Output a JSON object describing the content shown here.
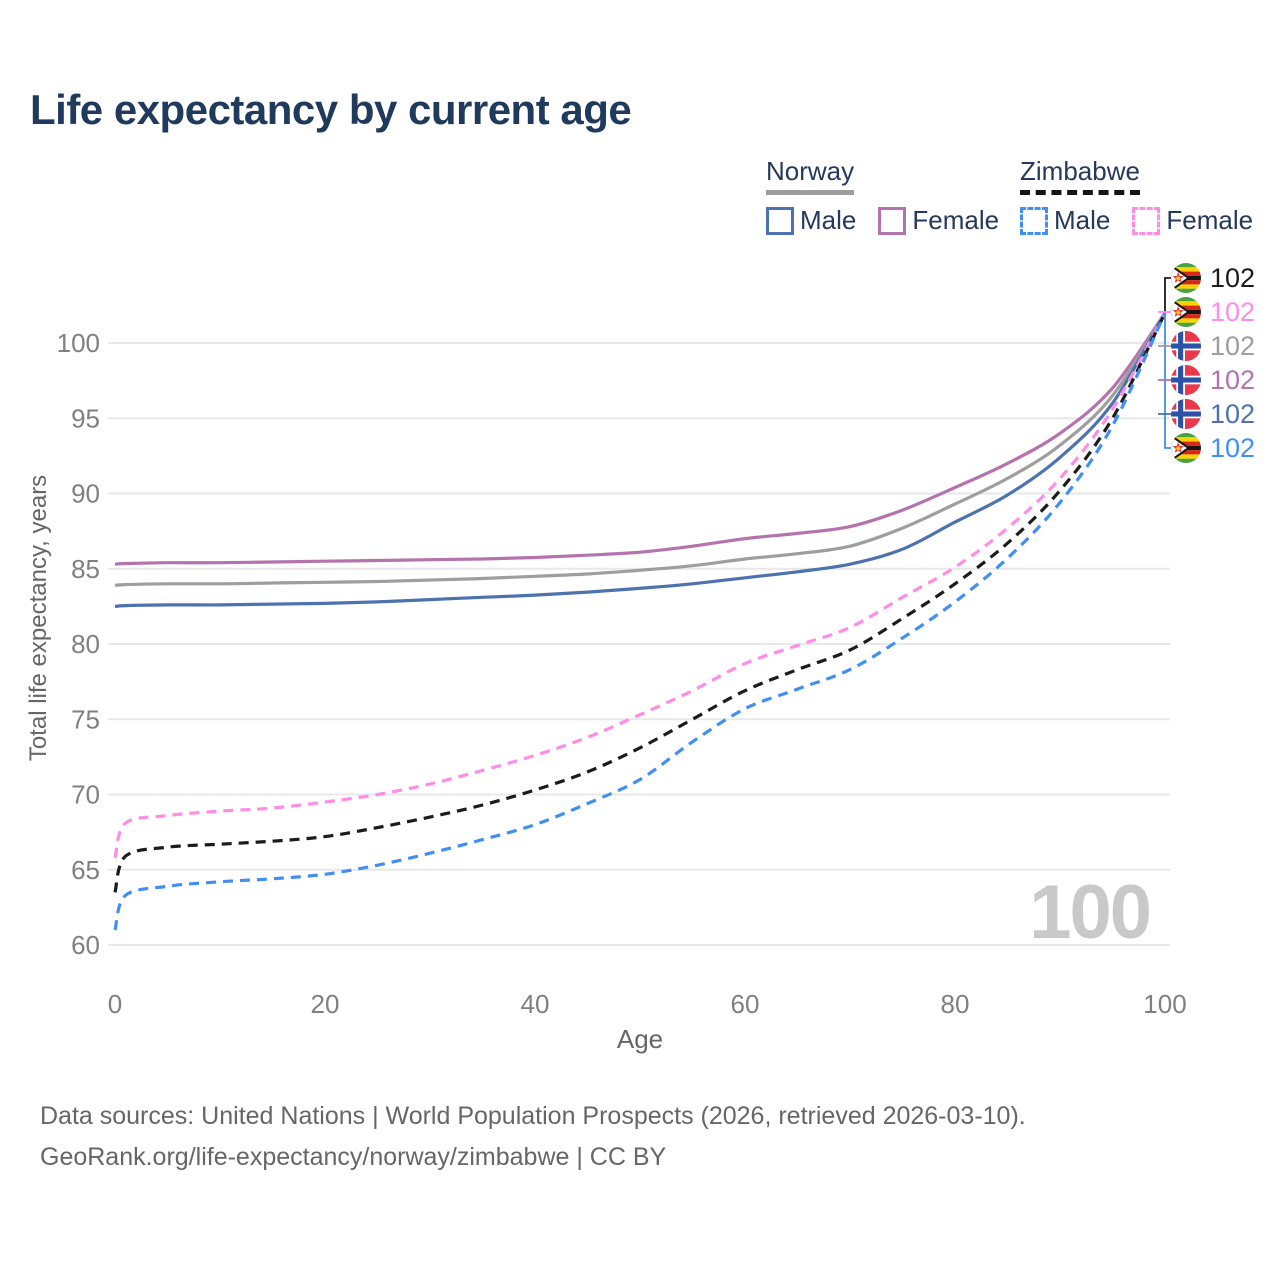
{
  "page": {
    "title": "Life expectancy by current age",
    "footer_line1": "Data sources: United Nations | World Population Prospects (2026, retrieved 2026-03-10).",
    "footer_line2": "GeoRank.org/life-expectancy/norway/zimbabwe | CC BY"
  },
  "legend": {
    "groups": [
      {
        "label": "Norway",
        "line": "solid",
        "underline_color": "#9E9E9E",
        "items": [
          {
            "label": "Male",
            "color": "#4C72B0",
            "dash": "solid"
          },
          {
            "label": "Female",
            "color": "#B473AF",
            "dash": "solid"
          }
        ]
      },
      {
        "label": "Zimbabwe",
        "line": "dashed",
        "underline_color": "#151515",
        "items": [
          {
            "label": "Male",
            "color": "#418FF4",
            "dash": "dashed"
          },
          {
            "label": "Female",
            "color": "#FF8DE8",
            "dash": "dashed"
          }
        ]
      }
    ]
  },
  "chart_data": {
    "type": "line",
    "title": "Life expectancy by current age",
    "xlabel": "Age",
    "ylabel": "Total life expectancy, years",
    "xlim": [
      0,
      100
    ],
    "ylim": [
      58,
      103
    ],
    "xticks": [
      0,
      20,
      40,
      60,
      80,
      100
    ],
    "yticks": [
      60,
      65,
      70,
      75,
      80,
      85,
      90,
      95,
      100
    ],
    "grid": "horizontal",
    "age_indicator": "100",
    "x": [
      0,
      1,
      5,
      10,
      15,
      20,
      25,
      30,
      35,
      40,
      45,
      50,
      55,
      60,
      65,
      70,
      75,
      80,
      85,
      90,
      95,
      100
    ],
    "series": [
      {
        "name": "Norway Female",
        "country": "Norway",
        "sex": "Female",
        "color": "#B473AF",
        "dash": "solid",
        "values": [
          85.3,
          85.35,
          85.4,
          85.4,
          85.45,
          85.5,
          85.55,
          85.6,
          85.65,
          85.75,
          85.9,
          86.1,
          86.5,
          87.0,
          87.35,
          87.8,
          88.9,
          90.4,
          92.0,
          94.0,
          97.0,
          102
        ]
      },
      {
        "name": "Norway Both sexes",
        "country": "Norway",
        "sex": "Both sexes",
        "color": "#9E9E9E",
        "dash": "solid",
        "values": [
          83.9,
          83.95,
          84.0,
          84.0,
          84.05,
          84.1,
          84.15,
          84.25,
          84.35,
          84.5,
          84.65,
          84.9,
          85.2,
          85.65,
          86.0,
          86.5,
          87.7,
          89.3,
          91.0,
          93.2,
          96.5,
          102
        ]
      },
      {
        "name": "Norway Male",
        "country": "Norway",
        "sex": "Male",
        "color": "#4C72B0",
        "dash": "solid",
        "values": [
          82.5,
          82.55,
          82.6,
          82.6,
          82.65,
          82.7,
          82.8,
          82.95,
          83.1,
          83.25,
          83.45,
          83.7,
          84.0,
          84.4,
          84.8,
          85.3,
          86.3,
          88.1,
          89.9,
          92.4,
          96.0,
          102
        ]
      },
      {
        "name": "Zimbabwe Female",
        "country": "Zimbabwe",
        "sex": "Female",
        "color": "#FF8DE8",
        "dash": "dashed",
        "values": [
          65.8,
          68.1,
          68.6,
          68.9,
          69.1,
          69.5,
          70.0,
          70.7,
          71.6,
          72.6,
          73.8,
          75.3,
          76.9,
          78.7,
          79.9,
          81.1,
          83.1,
          85.1,
          87.7,
          91.0,
          95.6,
          102
        ]
      },
      {
        "name": "Zimbabwe Both sexes",
        "country": "Zimbabwe",
        "sex": "Both sexes",
        "color": "#1B1B1B",
        "dash": "dashed",
        "values": [
          63.5,
          65.9,
          66.5,
          66.7,
          66.9,
          67.2,
          67.8,
          68.5,
          69.3,
          70.3,
          71.5,
          73.1,
          75.0,
          76.9,
          78.3,
          79.6,
          81.7,
          84.0,
          86.7,
          90.2,
          95.0,
          102
        ]
      },
      {
        "name": "Zimbabwe Male",
        "country": "Zimbabwe",
        "sex": "Male",
        "color": "#418FF4",
        "dash": "dashed",
        "values": [
          61.0,
          63.3,
          63.9,
          64.2,
          64.4,
          64.7,
          65.3,
          66.1,
          67.0,
          68.0,
          69.4,
          71.0,
          73.5,
          75.7,
          77.0,
          78.3,
          80.4,
          82.8,
          85.7,
          89.4,
          94.5,
          102
        ]
      }
    ],
    "end_labels": [
      {
        "series": "Zimbabwe Both sexes",
        "flag": "zimbabwe",
        "value": "102",
        "color": "#1B1B1B"
      },
      {
        "series": "Zimbabwe Female",
        "flag": "zimbabwe",
        "value": "102",
        "color": "#FF8DE8"
      },
      {
        "series": "Norway Both sexes",
        "flag": "norway",
        "value": "102",
        "color": "#9E9E9E"
      },
      {
        "series": "Norway Female",
        "flag": "norway",
        "value": "102",
        "color": "#B473AF"
      },
      {
        "series": "Norway Male",
        "flag": "norway",
        "value": "102",
        "color": "#4C72B0"
      },
      {
        "series": "Zimbabwe Male",
        "flag": "zimbabwe",
        "value": "102",
        "color": "#418FF4"
      }
    ]
  }
}
